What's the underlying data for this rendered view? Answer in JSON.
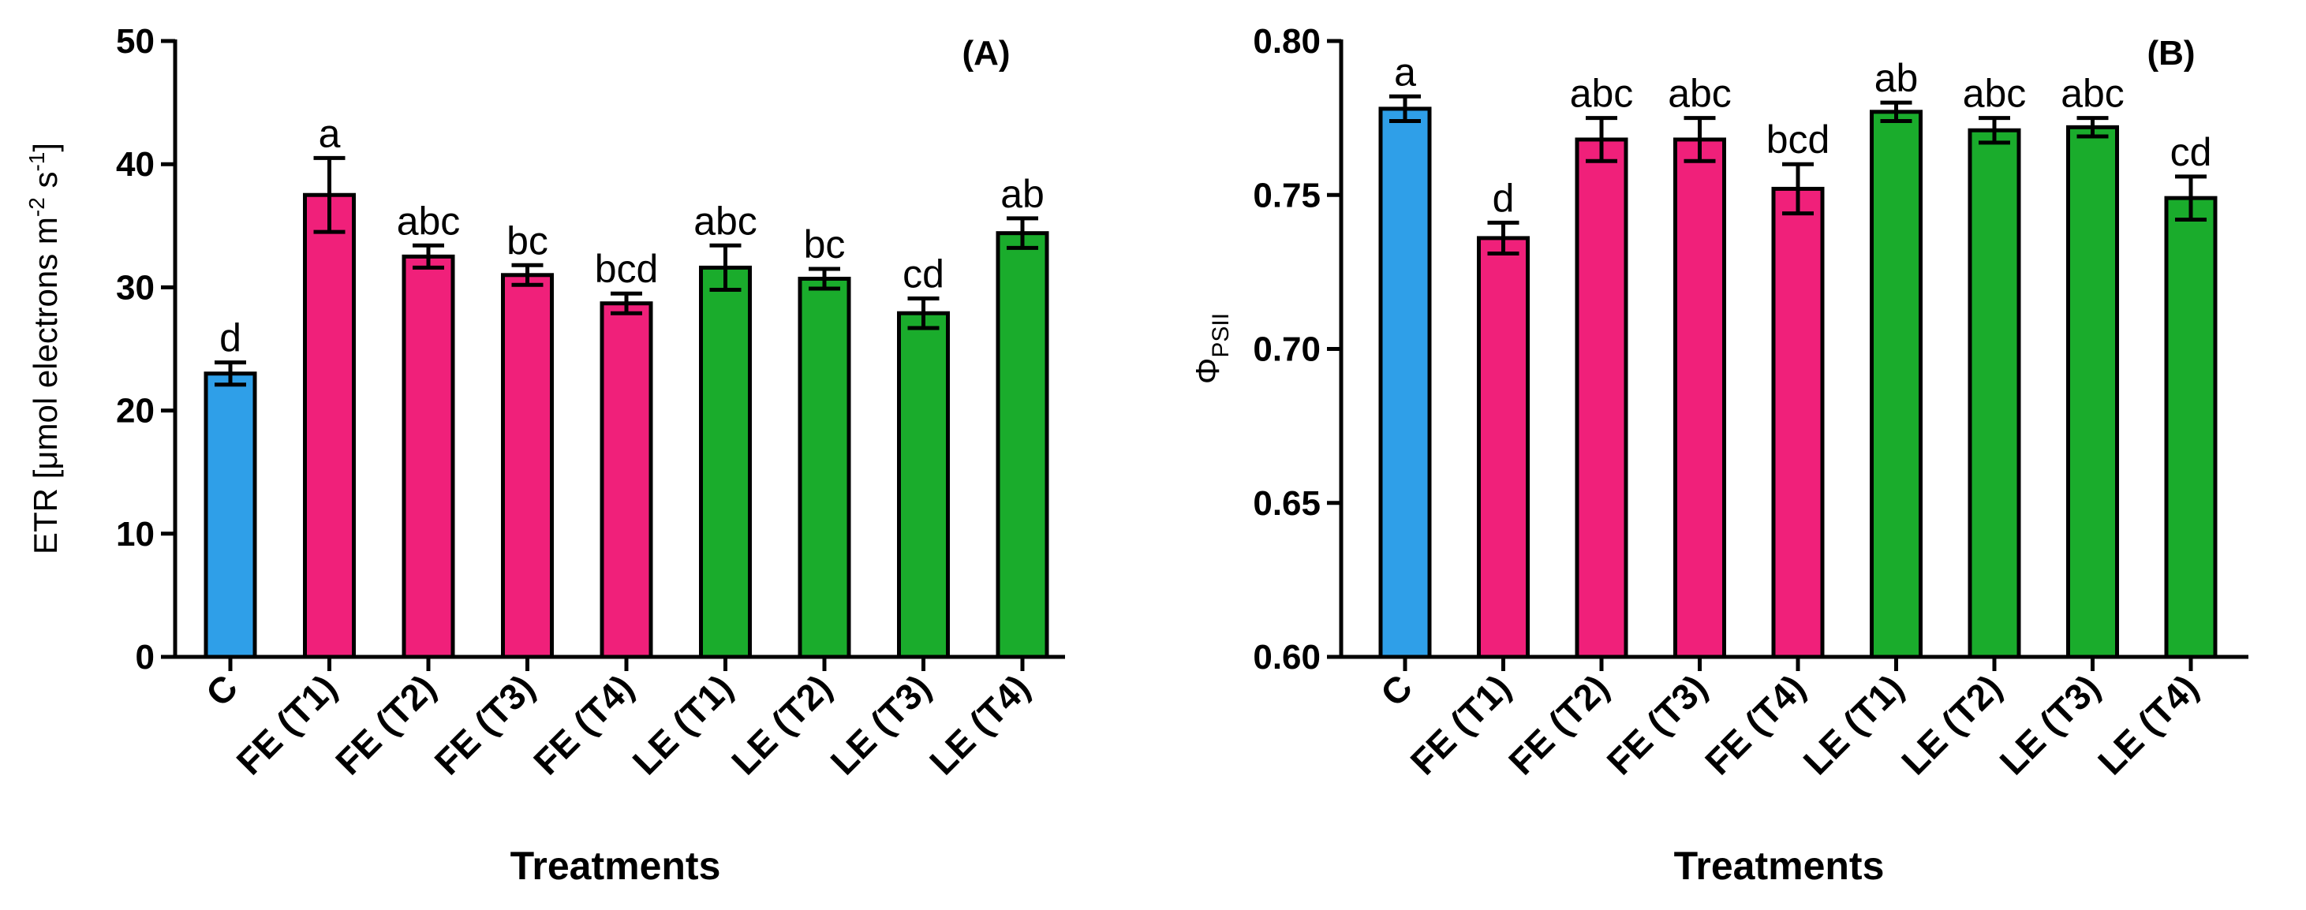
{
  "chart_data": [
    {
      "type": "bar",
      "panel_label": "(A)",
      "ylabel_main": "ETR [μmol electrons m",
      "ylabel_sup1": "-2",
      "ylabel_mid": " s",
      "ylabel_sup2": "-1",
      "ylabel_end": "]",
      "xlabel": "Treatments",
      "ylim": [
        0,
        50
      ],
      "yticks": [
        "0",
        "10",
        "20",
        "30",
        "40",
        "50"
      ],
      "categories": [
        "C",
        "FE (T1)",
        "FE (T2)",
        "FE (T3)",
        "FE (T4)",
        "LE (T1)",
        "LE (T2)",
        "LE (T3)",
        "LE (T4)"
      ],
      "values": [
        23.0,
        37.5,
        32.5,
        31.0,
        28.7,
        31.6,
        30.7,
        27.9,
        34.4
      ],
      "errors": [
        0.9,
        3.0,
        0.9,
        0.8,
        0.8,
        1.8,
        0.8,
        1.2,
        1.2
      ],
      "significance": [
        "d",
        "a",
        "abc",
        "bc",
        "bcd",
        "abc",
        "bc",
        "cd",
        "ab"
      ],
      "colors": [
        "#2f9fe8",
        "#f0207a",
        "#f0207a",
        "#f0207a",
        "#f0207a",
        "#1aac2c",
        "#1aac2c",
        "#1aac2c",
        "#1aac2c"
      ],
      "grid": false
    },
    {
      "type": "bar",
      "panel_label": "(B)",
      "ylabel_symbol": "Φ",
      "ylabel_sub": "PSII",
      "xlabel": "Treatments",
      "ylim": [
        0.6,
        0.8
      ],
      "yticks": [
        "0.60",
        "0.65",
        "0.70",
        "0.75",
        "0.80"
      ],
      "categories": [
        "C",
        "FE (T1)",
        "FE (T2)",
        "FE (T3)",
        "FE (T4)",
        "LE (T1)",
        "LE (T2)",
        "LE (T3)",
        "LE (T4)"
      ],
      "values": [
        0.778,
        0.736,
        0.768,
        0.768,
        0.752,
        0.777,
        0.771,
        0.772,
        0.749
      ],
      "errors": [
        0.004,
        0.005,
        0.007,
        0.007,
        0.008,
        0.003,
        0.004,
        0.003,
        0.007
      ],
      "significance": [
        "a",
        "d",
        "abc",
        "abc",
        "bcd",
        "ab",
        "abc",
        "abc",
        "cd"
      ],
      "colors": [
        "#2f9fe8",
        "#f0207a",
        "#f0207a",
        "#f0207a",
        "#f0207a",
        "#1aac2c",
        "#1aac2c",
        "#1aac2c",
        "#1aac2c"
      ],
      "grid": false
    }
  ]
}
